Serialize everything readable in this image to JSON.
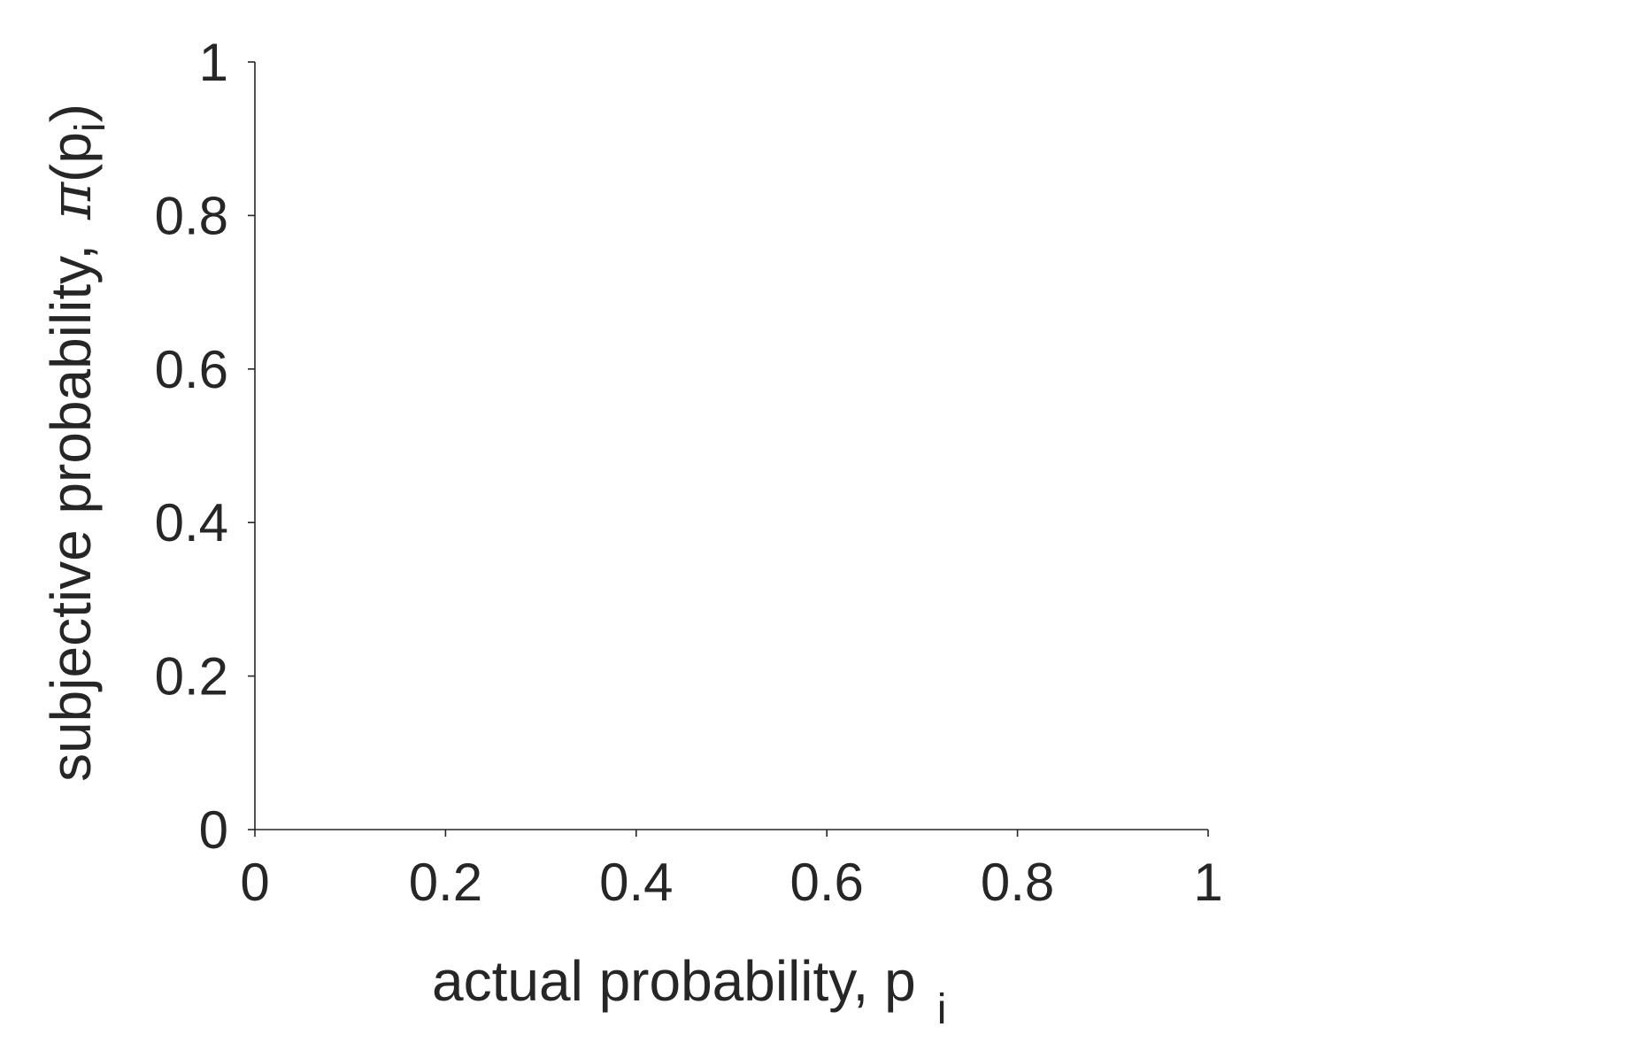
{
  "chart_data": {
    "type": "line",
    "title": "",
    "xlabel": {
      "text": "actual probability, p",
      "subscript": "i"
    },
    "ylabel": {
      "prefix": "subjective probability, ",
      "symbol": "π",
      "open": "(p",
      "subscript": "i",
      "close": ")"
    },
    "xlim": [
      0,
      1
    ],
    "ylim": [
      0,
      1
    ],
    "xticks": [
      0,
      0.2,
      0.4,
      0.6,
      0.8,
      1
    ],
    "xtick_labels": [
      "0",
      "0.2",
      "0.4",
      "0.6",
      "0.8",
      "1"
    ],
    "yticks": [
      0,
      0.2,
      0.4,
      0.6,
      0.8,
      1
    ],
    "ytick_labels": [
      "0",
      "0.2",
      "0.4",
      "0.6",
      "0.8",
      "1"
    ],
    "series": [],
    "grid": false,
    "legend": "none",
    "colors": {
      "axis": "#262626",
      "text": "#262626",
      "background": "#ffffff"
    }
  }
}
